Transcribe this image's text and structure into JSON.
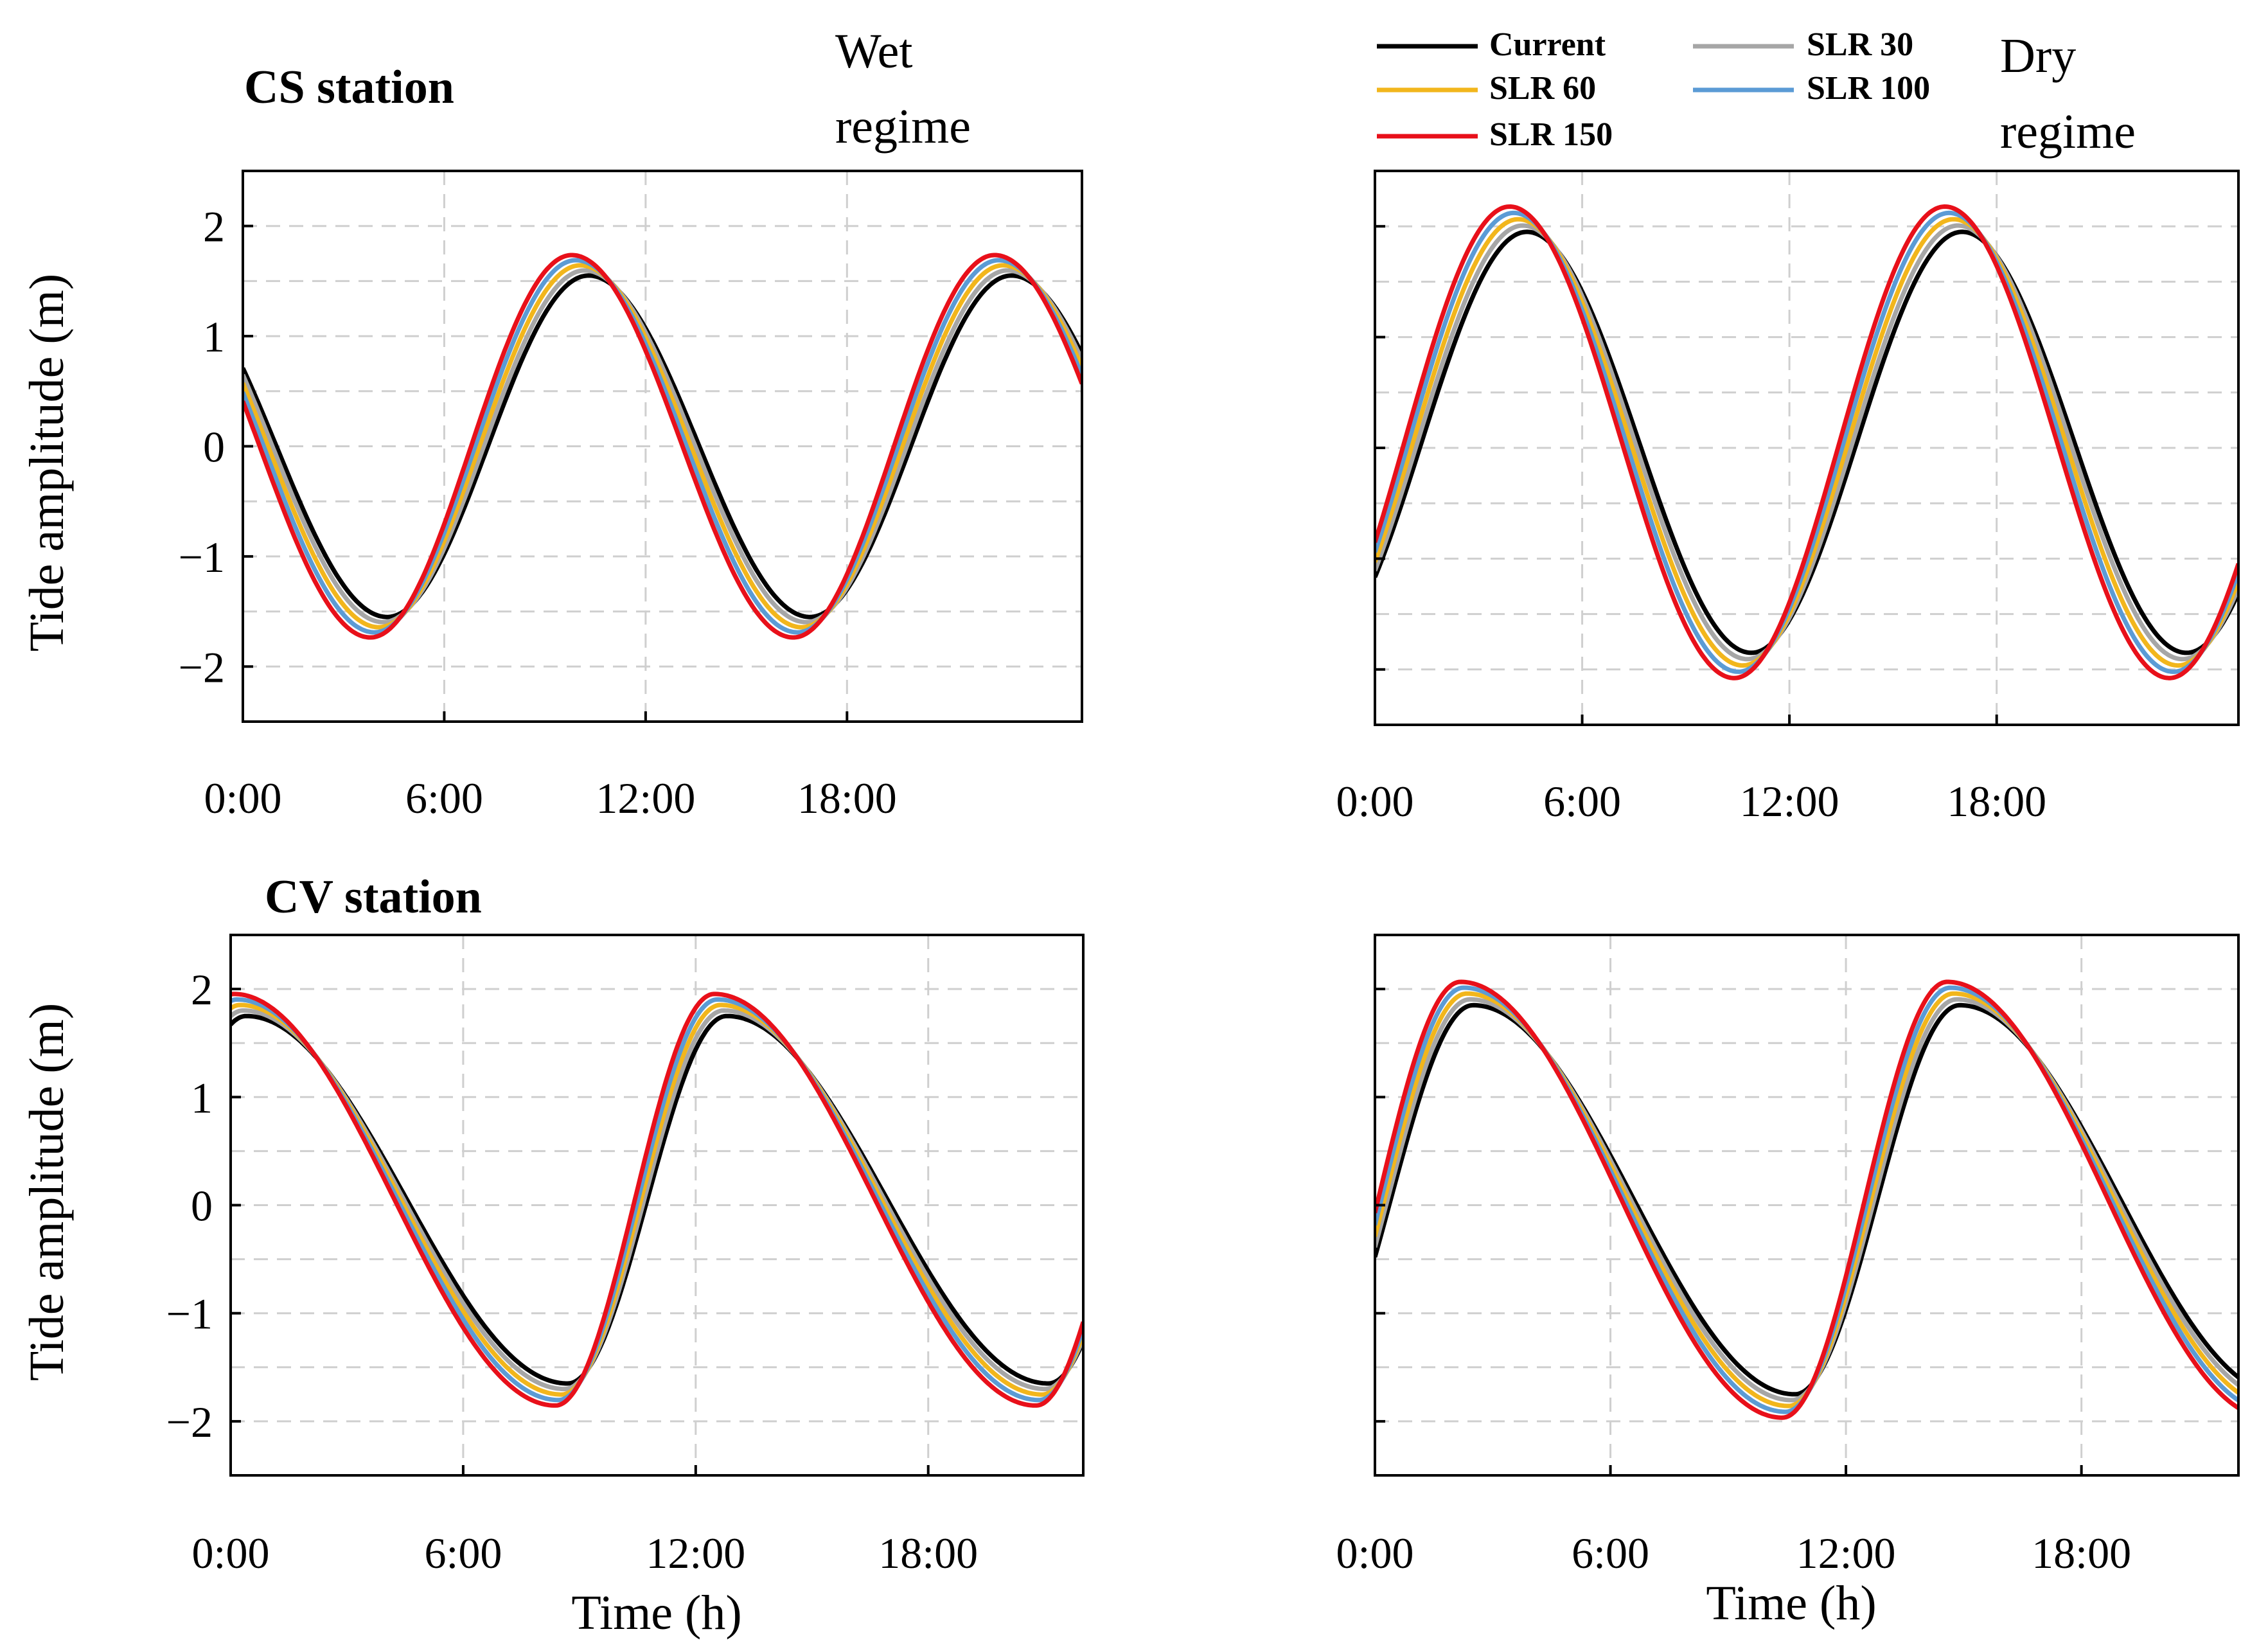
{
  "figure": {
    "row_titles": [
      "CS station",
      "CV station"
    ],
    "regime_labels": {
      "wet": [
        "Wet",
        "regime"
      ],
      "dry": [
        "Dry",
        "regime"
      ]
    },
    "y_axis_label": "Tide amplitude (m)",
    "x_axis_label": "Time (h)"
  },
  "legend": [
    {
      "label": "Current",
      "color": "#000000"
    },
    {
      "label": "SLR 30",
      "color": "#a6a6a6"
    },
    {
      "label": "SLR 60",
      "color": "#f2b61c"
    },
    {
      "label": "SLR 100",
      "color": "#5b9bd5"
    },
    {
      "label": "SLR 150",
      "color": "#e8101a"
    }
  ],
  "chart_data": [
    {
      "type": "line",
      "id": "cs-wet",
      "station": "CS station",
      "regime": "Wet regime",
      "xlabel": "",
      "ylabel": "Tide amplitude (m)",
      "xlim": [
        0,
        25
      ],
      "ylim": [
        -2.5,
        2.5
      ],
      "x_ticks": [
        "0:00",
        "6:00",
        "12:00",
        "18:00"
      ],
      "x_tick_values": [
        0,
        6,
        12,
        18
      ],
      "y_ticks": [
        "−2",
        "−1",
        "0",
        "1",
        "2"
      ],
      "y_tick_values": [
        -2,
        -1,
        0,
        1,
        2
      ],
      "grid": true,
      "curve_params": {
        "period": 12.6,
        "trough_time": 4.3,
        "peak_time": 10.3,
        "base_amplitude": 1.55,
        "offset": 0.0
      },
      "series": [
        {
          "name": "Current",
          "color": "#000000",
          "amp_scale": 1.0,
          "shift": 0.0
        },
        {
          "name": "SLR 30",
          "color": "#a6a6a6",
          "amp_scale": 1.03,
          "shift": -0.12
        },
        {
          "name": "SLR 60",
          "color": "#f2b61c",
          "amp_scale": 1.06,
          "shift": -0.25
        },
        {
          "name": "SLR 100",
          "color": "#5b9bd5",
          "amp_scale": 1.09,
          "shift": -0.38
        },
        {
          "name": "SLR 150",
          "color": "#e8101a",
          "amp_scale": 1.12,
          "shift": -0.5
        }
      ]
    },
    {
      "type": "line",
      "id": "cs-dry",
      "station": "CS station",
      "regime": "Dry regime",
      "xlabel": "",
      "ylabel": "",
      "xlim": [
        0,
        25
      ],
      "ylim": [
        -2.5,
        2.5
      ],
      "x_ticks": [
        "0:00",
        "6:00",
        "12:00",
        "18:00"
      ],
      "x_tick_values": [
        0,
        6,
        12,
        18
      ],
      "y_ticks": [],
      "y_tick_values": [
        -2,
        -1,
        0,
        1,
        2
      ],
      "grid": true,
      "curve_params": {
        "period": 12.6,
        "trough_time": 10.9,
        "peak_time": 4.4,
        "base_amplitude": 1.9,
        "offset": 0.05
      },
      "series": [
        {
          "name": "Current",
          "color": "#000000",
          "amp_scale": 1.0,
          "shift": 0.0
        },
        {
          "name": "SLR 30",
          "color": "#a6a6a6",
          "amp_scale": 1.03,
          "shift": -0.12
        },
        {
          "name": "SLR 60",
          "color": "#f2b61c",
          "amp_scale": 1.06,
          "shift": -0.25
        },
        {
          "name": "SLR 100",
          "color": "#5b9bd5",
          "amp_scale": 1.09,
          "shift": -0.38
        },
        {
          "name": "SLR 150",
          "color": "#e8101a",
          "amp_scale": 1.12,
          "shift": -0.5
        }
      ]
    },
    {
      "type": "line",
      "id": "cv-wet",
      "station": "CV station",
      "regime": "Wet regime",
      "xlabel": "Time (h)",
      "ylabel": "Tide amplitude (m)",
      "xlim": [
        0,
        22
      ],
      "ylim": [
        -2.5,
        2.5
      ],
      "x_ticks": [
        "0:00",
        "6:00",
        "12:00",
        "18:00"
      ],
      "x_tick_values": [
        0,
        6,
        12,
        18
      ],
      "y_ticks": [
        "−2",
        "−1",
        "0",
        "1",
        "2"
      ],
      "y_tick_values": [
        -2,
        -1,
        0,
        1,
        2
      ],
      "grid": true,
      "curve_params": {
        "period": 12.4,
        "trough_time": 8.7,
        "peak_time": 12.8,
        "base_amplitude": 1.7,
        "offset": 0.05
      },
      "series": [
        {
          "name": "Current",
          "color": "#000000",
          "amp_scale": 1.0,
          "shift": 0.0
        },
        {
          "name": "SLR 30",
          "color": "#a6a6a6",
          "amp_scale": 1.03,
          "shift": -0.08
        },
        {
          "name": "SLR 60",
          "color": "#f2b61c",
          "amp_scale": 1.06,
          "shift": -0.16
        },
        {
          "name": "SLR 100",
          "color": "#5b9bd5",
          "amp_scale": 1.09,
          "shift": -0.24
        },
        {
          "name": "SLR 150",
          "color": "#e8101a",
          "amp_scale": 1.12,
          "shift": -0.32
        }
      ]
    },
    {
      "type": "line",
      "id": "cv-dry",
      "station": "CV station",
      "regime": "Dry regime",
      "xlabel": "Time (h)",
      "ylabel": "",
      "xlim": [
        0,
        22
      ],
      "ylim": [
        -2.5,
        2.5
      ],
      "x_ticks": [
        "0:00",
        "6:00",
        "12:00",
        "18:00"
      ],
      "x_tick_values": [
        0,
        6,
        12,
        18
      ],
      "y_ticks": [],
      "y_tick_values": [
        -2,
        -1,
        0,
        1,
        2
      ],
      "grid": true,
      "curve_params": {
        "period": 12.4,
        "trough_time": 10.7,
        "peak_time": 2.5,
        "base_amplitude": 1.8,
        "offset": 0.05
      },
      "series": [
        {
          "name": "Current",
          "color": "#000000",
          "amp_scale": 1.0,
          "shift": 0.0
        },
        {
          "name": "SLR 30",
          "color": "#a6a6a6",
          "amp_scale": 1.03,
          "shift": -0.08
        },
        {
          "name": "SLR 60",
          "color": "#f2b61c",
          "amp_scale": 1.06,
          "shift": -0.16
        },
        {
          "name": "SLR 100",
          "color": "#5b9bd5",
          "amp_scale": 1.09,
          "shift": -0.24
        },
        {
          "name": "SLR 150",
          "color": "#e8101a",
          "amp_scale": 1.12,
          "shift": -0.32
        }
      ]
    }
  ]
}
